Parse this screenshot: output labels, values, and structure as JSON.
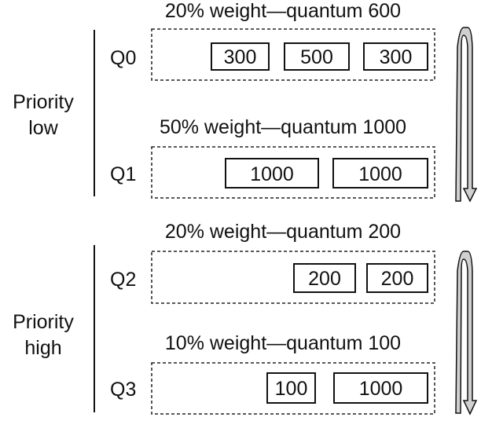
{
  "groups": [
    {
      "label_line1": "Priority",
      "label_line2": "low"
    },
    {
      "label_line1": "Priority",
      "label_line2": "high"
    }
  ],
  "queues": [
    {
      "name": "Q0",
      "caption": "20% weight—quantum 600",
      "packets": [
        "300",
        "500",
        "300"
      ]
    },
    {
      "name": "Q1",
      "caption": "50% weight—quantum 1000",
      "packets": [
        "1000",
        "1000"
      ]
    },
    {
      "name": "Q2",
      "caption": "20% weight—quantum 200",
      "packets": [
        "200",
        "200"
      ]
    },
    {
      "name": "Q3",
      "caption": "10% weight—quantum 100",
      "packets": [
        "100",
        "1000"
      ]
    }
  ],
  "colors": {
    "arrow_fill": "#d0d0d0",
    "stroke": "#111111"
  }
}
